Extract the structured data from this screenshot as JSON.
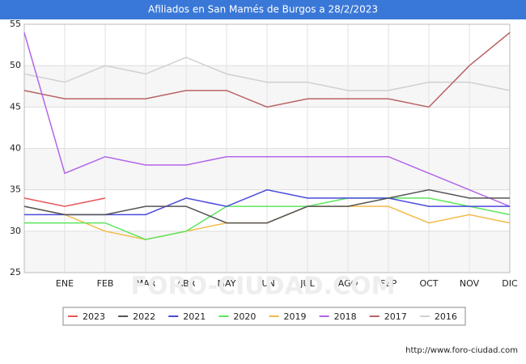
{
  "chart_data": {
    "type": "line",
    "title": "Afiliados en San Mamés de Burgos a 28/2/2023",
    "categories": [
      null,
      "ENE",
      "FEB",
      "MAR",
      "ABR",
      "MAY",
      "JUN",
      "JUL",
      "AGO",
      "SEP",
      "OCT",
      "NOV",
      "DIC"
    ],
    "series": [
      {
        "name": "2023",
        "color": "#e8575a",
        "values": [
          34,
          33,
          34,
          null,
          null,
          null,
          null,
          null,
          null,
          null,
          null,
          null,
          null
        ]
      },
      {
        "name": "2022",
        "color": "#555555",
        "values": [
          33,
          32,
          32,
          33,
          33,
          31,
          31,
          33,
          33,
          34,
          35,
          34,
          34
        ]
      },
      {
        "name": "2021",
        "color": "#4a4adb",
        "values": [
          32,
          32,
          32,
          32,
          34,
          33,
          35,
          34,
          34,
          34,
          33,
          33,
          33
        ]
      },
      {
        "name": "2020",
        "color": "#5ce65c",
        "values": [
          31,
          31,
          31,
          29,
          30,
          33,
          33,
          33,
          34,
          34,
          34,
          33,
          32
        ]
      },
      {
        "name": "2019",
        "color": "#f2bb4a",
        "values": [
          33,
          32,
          30,
          29,
          30,
          31,
          31,
          33,
          33,
          33,
          31,
          32,
          31
        ]
      },
      {
        "name": "2018",
        "color": "#b266e8",
        "values": [
          54,
          37,
          39,
          38,
          38,
          39,
          39,
          39,
          39,
          39,
          37,
          35,
          33
        ]
      },
      {
        "name": "2017",
        "color": "#b86466",
        "values": [
          47,
          46,
          46,
          46,
          47,
          47,
          45,
          46,
          46,
          46,
          45,
          50,
          54
        ]
      },
      {
        "name": "2016",
        "color": "#d0d0d0",
        "values": [
          49,
          48,
          50,
          49,
          51,
          49,
          48,
          48,
          47,
          47,
          48,
          48,
          47
        ]
      }
    ],
    "ylim": [
      25,
      55
    ],
    "yticks": [
      25,
      30,
      35,
      40,
      45,
      50,
      55
    ],
    "grid": true,
    "legend": "bottom",
    "watermark": "FORO-CIUDAD.COM",
    "footer": "http://www.foro-ciudad.com"
  }
}
